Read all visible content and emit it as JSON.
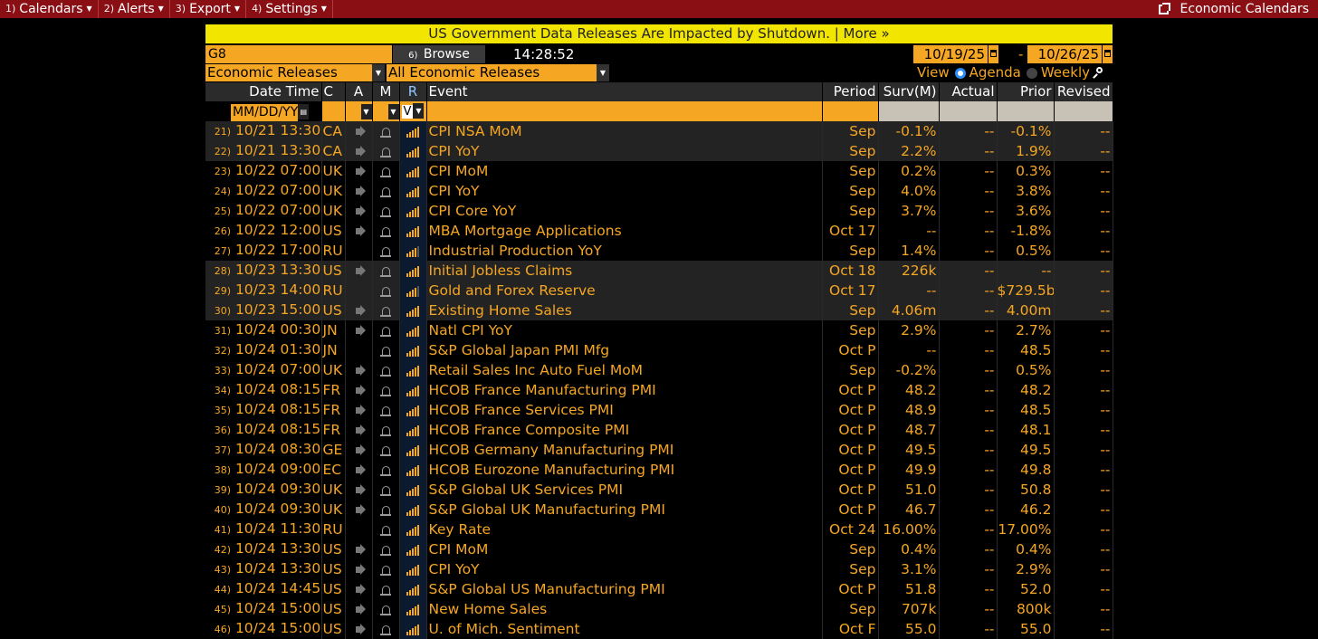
{
  "menu": [
    {
      "num": "1)",
      "label": "Calendars"
    },
    {
      "num": "2)",
      "label": "Alerts"
    },
    {
      "num": "3)",
      "label": "Export"
    },
    {
      "num": "4)",
      "label": "Settings"
    }
  ],
  "menu_right": "Economic Calendars",
  "banner": "US Government Data Releases Are Impacted by Shutdown. | More »",
  "ticker": "G8",
  "browse": {
    "num": "6)",
    "label": "Browse"
  },
  "clock": "14:28:52",
  "date_from": "10/19/25",
  "date_sep": "-",
  "date_to": "10/26/25",
  "filter1": "Economic Releases",
  "filter2": "All Economic Releases",
  "view": {
    "label": "View",
    "agenda": "Agenda",
    "weekly": "Weekly"
  },
  "columns": {
    "datetime": "Date Time",
    "c": "C",
    "a": "A",
    "m": "M",
    "r": "R",
    "event": "Event",
    "period": "Period",
    "surv": "Surv(M)",
    "actual": "Actual",
    "prior": "Prior",
    "revised": "Revised"
  },
  "filter_placeholder": "MM/DD/YY",
  "filter_r_value": "V",
  "icons": {
    "audio": "speaker-icon",
    "alert": "bell-icon",
    "relevance": "relevance-bars-icon"
  },
  "rows": [
    {
      "idx": "21)",
      "dt": "10/21 13:30",
      "c": "CA",
      "audio": true,
      "event": "CPI NSA MoM",
      "period": "Sep",
      "surv": "-0.1%",
      "actual": "--",
      "prior": "-0.1%",
      "revised": "--",
      "hl": true,
      "rel": 5
    },
    {
      "idx": "22)",
      "dt": "10/21 13:30",
      "c": "CA",
      "audio": true,
      "event": "CPI YoY",
      "period": "Sep",
      "surv": "2.2%",
      "actual": "--",
      "prior": "1.9%",
      "revised": "--",
      "hl": true,
      "rel": 5
    },
    {
      "idx": "23)",
      "dt": "10/22 07:00",
      "c": "UK",
      "audio": true,
      "event": "CPI MoM",
      "period": "Sep",
      "surv": "0.2%",
      "actual": "--",
      "prior": "0.3%",
      "revised": "--",
      "hl": false,
      "rel": 5
    },
    {
      "idx": "24)",
      "dt": "10/22 07:00",
      "c": "UK",
      "audio": true,
      "event": "CPI YoY",
      "period": "Sep",
      "surv": "4.0%",
      "actual": "--",
      "prior": "3.8%",
      "revised": "--",
      "hl": false,
      "rel": 5
    },
    {
      "idx": "25)",
      "dt": "10/22 07:00",
      "c": "UK",
      "audio": true,
      "event": "CPI Core YoY",
      "period": "Sep",
      "surv": "3.7%",
      "actual": "--",
      "prior": "3.6%",
      "revised": "--",
      "hl": false,
      "rel": 5
    },
    {
      "idx": "26)",
      "dt": "10/22 12:00",
      "c": "US",
      "audio": true,
      "event": "MBA Mortgage Applications",
      "period": "Oct 17",
      "surv": "--",
      "actual": "--",
      "prior": "-1.8%",
      "revised": "--",
      "hl": false,
      "rel": 5
    },
    {
      "idx": "27)",
      "dt": "10/22 17:00",
      "c": "RU",
      "audio": false,
      "event": "Industrial Production YoY",
      "period": "Sep",
      "surv": "1.4%",
      "actual": "--",
      "prior": "0.5%",
      "revised": "--",
      "hl": false,
      "rel": 4
    },
    {
      "idx": "28)",
      "dt": "10/23 13:30",
      "c": "US",
      "audio": true,
      "event": "Initial Jobless Claims",
      "period": "Oct 18",
      "surv": "226k",
      "actual": "--",
      "prior": "--",
      "revised": "--",
      "hl": true,
      "rel": 5
    },
    {
      "idx": "29)",
      "dt": "10/23 14:00",
      "c": "RU",
      "audio": false,
      "event": "Gold and Forex Reserve",
      "period": "Oct 17",
      "surv": "--",
      "actual": "--",
      "prior": "$729.5b",
      "revised": "--",
      "hl": true,
      "rel": 4
    },
    {
      "idx": "30)",
      "dt": "10/23 15:00",
      "c": "US",
      "audio": true,
      "event": "Existing Home Sales",
      "period": "Sep",
      "surv": "4.06m",
      "actual": "--",
      "prior": "4.00m",
      "revised": "--",
      "hl": true,
      "rel": 5
    },
    {
      "idx": "31)",
      "dt": "10/24 00:30",
      "c": "JN",
      "audio": true,
      "event": "Natl CPI YoY",
      "period": "Sep",
      "surv": "2.9%",
      "actual": "--",
      "prior": "2.7%",
      "revised": "--",
      "hl": false,
      "rel": 5
    },
    {
      "idx": "32)",
      "dt": "10/24 01:30",
      "c": "JN",
      "audio": false,
      "event": "S&P Global Japan PMI Mfg",
      "period": "Oct P",
      "surv": "--",
      "actual": "--",
      "prior": "48.5",
      "revised": "--",
      "hl": false,
      "rel": 5
    },
    {
      "idx": "33)",
      "dt": "10/24 07:00",
      "c": "UK",
      "audio": true,
      "event": "Retail Sales Inc Auto Fuel MoM",
      "period": "Sep",
      "surv": "-0.2%",
      "actual": "--",
      "prior": "0.5%",
      "revised": "--",
      "hl": false,
      "rel": 5
    },
    {
      "idx": "34)",
      "dt": "10/24 08:15",
      "c": "FR",
      "audio": true,
      "event": "HCOB France Manufacturing PMI",
      "period": "Oct P",
      "surv": "48.2",
      "actual": "--",
      "prior": "48.2",
      "revised": "--",
      "hl": false,
      "rel": 5
    },
    {
      "idx": "35)",
      "dt": "10/24 08:15",
      "c": "FR",
      "audio": true,
      "event": "HCOB France Services PMI",
      "period": "Oct P",
      "surv": "48.9",
      "actual": "--",
      "prior": "48.5",
      "revised": "--",
      "hl": false,
      "rel": 5
    },
    {
      "idx": "36)",
      "dt": "10/24 08:15",
      "c": "FR",
      "audio": true,
      "event": "HCOB France Composite PMI",
      "period": "Oct P",
      "surv": "48.7",
      "actual": "--",
      "prior": "48.1",
      "revised": "--",
      "hl": false,
      "rel": 5
    },
    {
      "idx": "37)",
      "dt": "10/24 08:30",
      "c": "GE",
      "audio": true,
      "event": "HCOB Germany Manufacturing PMI",
      "period": "Oct P",
      "surv": "49.5",
      "actual": "--",
      "prior": "49.5",
      "revised": "--",
      "hl": false,
      "rel": 5
    },
    {
      "idx": "38)",
      "dt": "10/24 09:00",
      "c": "EC",
      "audio": true,
      "event": "HCOB Eurozone Manufacturing PMI",
      "period": "Oct P",
      "surv": "49.9",
      "actual": "--",
      "prior": "49.8",
      "revised": "--",
      "hl": false,
      "rel": 5
    },
    {
      "idx": "39)",
      "dt": "10/24 09:30",
      "c": "UK",
      "audio": true,
      "event": "S&P Global UK Services PMI",
      "period": "Oct P",
      "surv": "51.0",
      "actual": "--",
      "prior": "50.8",
      "revised": "--",
      "hl": false,
      "rel": 5
    },
    {
      "idx": "40)",
      "dt": "10/24 09:30",
      "c": "UK",
      "audio": true,
      "event": "S&P Global UK Manufacturing PMI",
      "period": "Oct P",
      "surv": "46.7",
      "actual": "--",
      "prior": "46.2",
      "revised": "--",
      "hl": false,
      "rel": 5
    },
    {
      "idx": "41)",
      "dt": "10/24 11:30",
      "c": "RU",
      "audio": false,
      "event": "Key Rate",
      "period": "Oct 24",
      "surv": "16.00%",
      "actual": "--",
      "prior": "17.00%",
      "revised": "--",
      "hl": false,
      "rel": 5
    },
    {
      "idx": "42)",
      "dt": "10/24 13:30",
      "c": "US",
      "audio": true,
      "event": "CPI MoM",
      "period": "Sep",
      "surv": "0.4%",
      "actual": "--",
      "prior": "0.4%",
      "revised": "--",
      "hl": false,
      "rel": 5
    },
    {
      "idx": "43)",
      "dt": "10/24 13:30",
      "c": "US",
      "audio": true,
      "event": "CPI YoY",
      "period": "Sep",
      "surv": "3.1%",
      "actual": "--",
      "prior": "2.9%",
      "revised": "--",
      "hl": false,
      "rel": 5
    },
    {
      "idx": "44)",
      "dt": "10/24 14:45",
      "c": "US",
      "audio": true,
      "event": "S&P Global US Manufacturing PMI",
      "period": "Oct P",
      "surv": "51.8",
      "actual": "--",
      "prior": "52.0",
      "revised": "--",
      "hl": false,
      "rel": 5
    },
    {
      "idx": "45)",
      "dt": "10/24 15:00",
      "c": "US",
      "audio": true,
      "event": "New Home Sales",
      "period": "Sep",
      "surv": "707k",
      "actual": "--",
      "prior": "800k",
      "revised": "--",
      "hl": false,
      "rel": 5
    },
    {
      "idx": "46)",
      "dt": "10/24 15:00",
      "c": "US",
      "audio": true,
      "event": "U. of Mich. Sentiment",
      "period": "Oct F",
      "surv": "55.0",
      "actual": "--",
      "prior": "55.0",
      "revised": "--",
      "hl": false,
      "rel": 5
    }
  ],
  "colors": {
    "accent": "#f5a623",
    "topbar": "#8a0f14",
    "banner": "#f2e600",
    "highlight_row": "#232323"
  }
}
